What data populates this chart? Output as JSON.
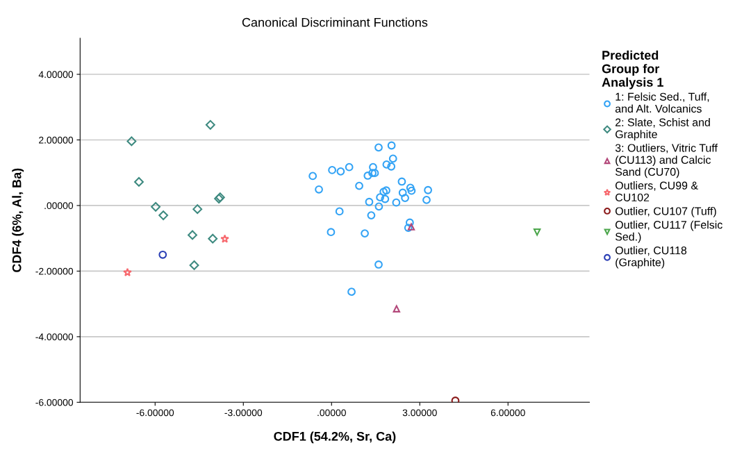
{
  "chart_data": {
    "type": "scatter",
    "title": "Canonical Discriminant Functions",
    "xlabel": "CDF1 (54.2%, Sr, Ca)",
    "ylabel": "CDF4 (6%, Al, Ba)",
    "legend_title": "Predicted\nGroup for\nAnalysis 1",
    "xlim": [
      -8.55,
      8.77
    ],
    "ylim": [
      -6.0,
      5.1
    ],
    "xticks": [
      {
        "value": -6,
        "label": "-6.00000"
      },
      {
        "value": -3,
        "label": "-3.00000"
      },
      {
        "value": 0,
        "label": ".00000"
      },
      {
        "value": 3,
        "label": "3.00000"
      },
      {
        "value": 6,
        "label": "6.00000"
      }
    ],
    "yticks": [
      {
        "value": -6,
        "label": "-6.00000"
      },
      {
        "value": -4,
        "label": "-4.00000"
      },
      {
        "value": -2,
        "label": "-2.00000"
      },
      {
        "value": 0,
        "label": ".00000"
      },
      {
        "value": 2,
        "label": "2.00000"
      },
      {
        "value": 4,
        "label": "4.00000"
      }
    ],
    "grid": "y",
    "legend": "right",
    "series": [
      {
        "name": "1: Felsic Sed., Tuff,\nand Alt. Volcanics",
        "color": "#33a3f5",
        "marker": "circle",
        "x": [
          1.6,
          2.04,
          2.09,
          1.87,
          2.03,
          1.41,
          0.6,
          0.02,
          0.31,
          -0.64,
          1.23,
          1.39,
          1.47,
          -0.43,
          0.94,
          2.39,
          2.68,
          2.72,
          3.28,
          2.42,
          2.5,
          3.23,
          1.86,
          1.77,
          1.65,
          1.82,
          2.2,
          1.28,
          1.61,
          0.27,
          1.35,
          2.66,
          2.61,
          -0.02,
          1.13,
          1.6,
          0.68
        ],
        "values": [
          1.77,
          1.83,
          1.43,
          1.25,
          1.19,
          1.17,
          1.17,
          1.08,
          1.04,
          0.9,
          0.91,
          0.99,
          0.99,
          0.49,
          0.6,
          0.73,
          0.54,
          0.45,
          0.47,
          0.39,
          0.23,
          0.17,
          0.46,
          0.42,
          0.25,
          0.2,
          0.09,
          0.11,
          -0.03,
          -0.18,
          -0.3,
          -0.52,
          -0.68,
          -0.81,
          -0.85,
          -1.8,
          -2.63
        ]
      },
      {
        "name": "2: Slate, Schist and\nGraphite",
        "color": "#3e8a80",
        "marker": "diamond",
        "x": [
          -4.12,
          -6.8,
          -6.55,
          -3.79,
          -3.83,
          -5.98,
          -5.72,
          -4.56,
          -4.73,
          -4.04,
          -4.67
        ],
        "values": [
          2.46,
          1.96,
          0.72,
          0.25,
          0.21,
          -0.04,
          -0.3,
          -0.11,
          -0.9,
          -1.01,
          -1.82
        ]
      },
      {
        "name": "3: Outliers, Vitric Tuff\n(CU113) and Calcic\nSand (CU70)",
        "color": "#b3487a",
        "marker": "triangle",
        "x": [
          2.71,
          2.21
        ],
        "values": [
          -0.65,
          -3.15
        ]
      },
      {
        "name": "Outliers, CU99 &\nCU102",
        "color": "#f7696e",
        "marker": "star",
        "x": [
          -3.63,
          -6.94
        ],
        "values": [
          -1.02,
          -2.04
        ]
      },
      {
        "name": "Outlier, CU107 (Tuff)",
        "color": "#8b1a1a",
        "x": [
          4.21
        ],
        "values": [
          -5.95
        ]
      },
      {
        "name": "Outlier, CU117 (Felsic\nSed.)",
        "color": "#4ca64c",
        "marker": "triangle_down",
        "x": [
          6.99
        ],
        "values": [
          -0.81
        ]
      },
      {
        "name": "Outlier, CU118\n(Graphite)",
        "color": "#2b3fb5",
        "x": [
          -5.74
        ],
        "values": [
          -1.5
        ]
      }
    ]
  }
}
